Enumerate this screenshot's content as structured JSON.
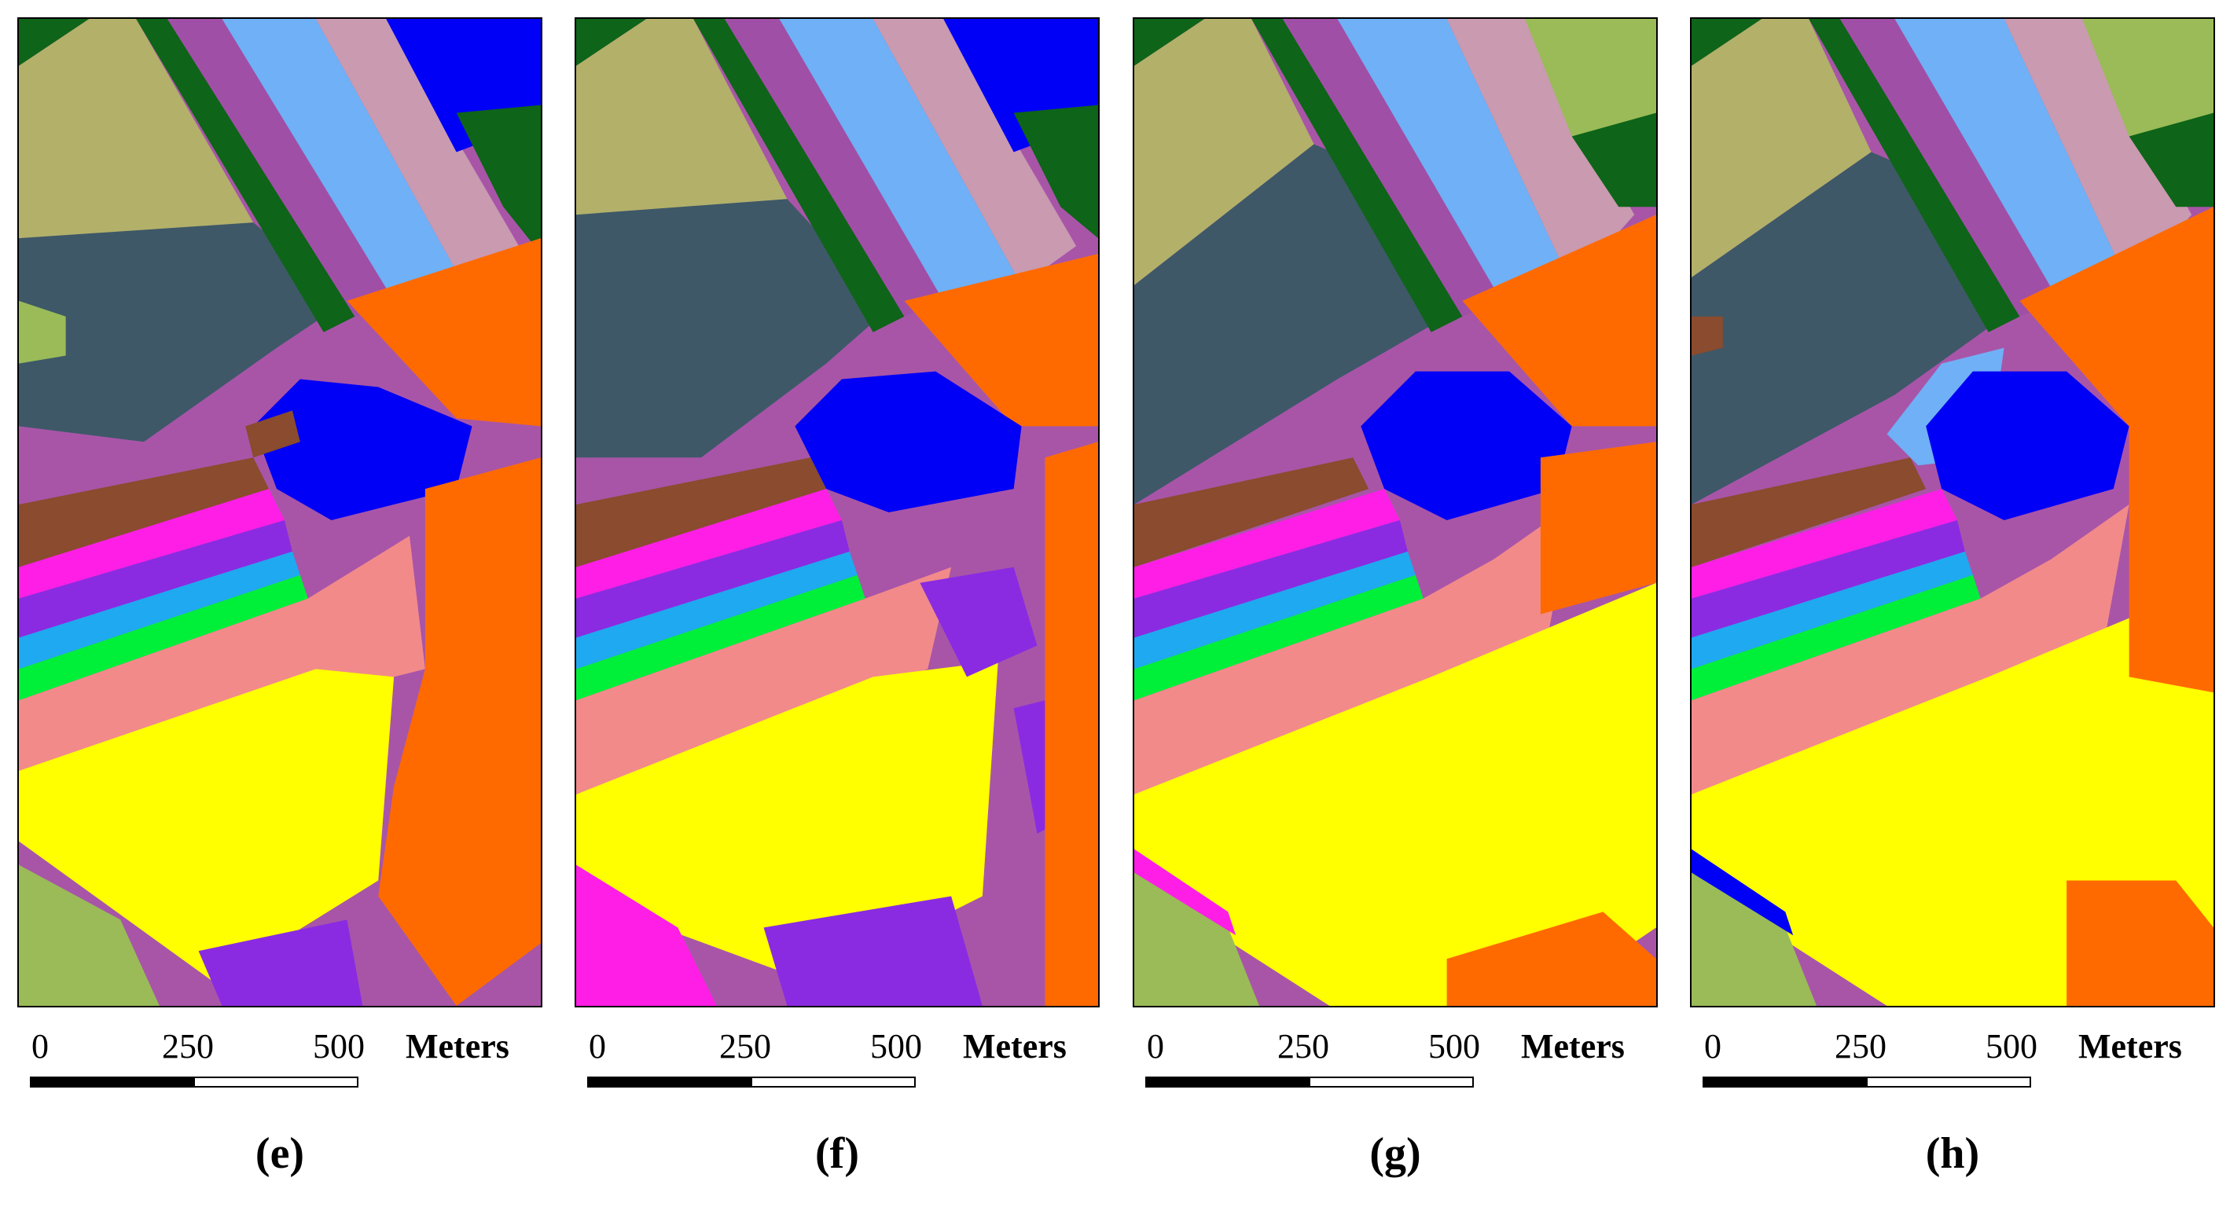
{
  "figure": {
    "panels": [
      {
        "label": "(e)"
      },
      {
        "label": "(f)"
      },
      {
        "label": "(g)"
      },
      {
        "label": "(h)"
      }
    ],
    "scale_bar": {
      "ticks": [
        "0",
        "250",
        "500"
      ],
      "unit": "Meters"
    }
  },
  "colors": {
    "olive": "#b3b06a",
    "slate": "#3e5868",
    "dark_green": "#0e6418",
    "light_green": "#9abb58",
    "violet_stripe": "#a04fa6",
    "light_blue": "#6fb0f6",
    "pink_gray": "#c99ab0",
    "orange": "#ff6a00",
    "blue": "#0000f6",
    "brown": "#8a4b2e",
    "magenta": "#ff1ee6",
    "purple": "#8a2be2",
    "cyan": "#1ea9f0",
    "green": "#00f03a",
    "salmon": "#f28a8a",
    "yellow": "#ffff00",
    "mauve": "#a855a8"
  }
}
